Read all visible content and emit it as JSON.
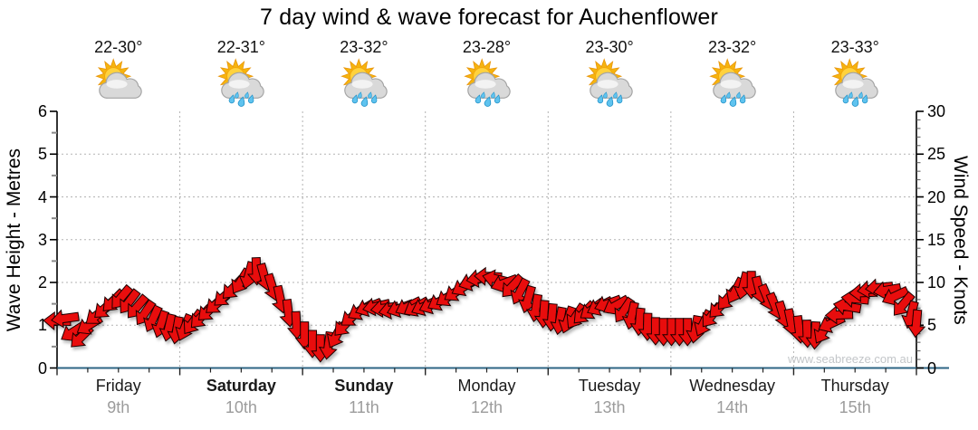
{
  "title": "7 day wind & wave forecast for Auchenflower",
  "watermark": "www.seabreeze.com.au",
  "days": [
    {
      "name": "Friday",
      "date": "9th",
      "temp_range": "22-30°",
      "icon": "sun-cloud",
      "bold": false
    },
    {
      "name": "Saturday",
      "date": "10th",
      "temp_range": "22-31°",
      "icon": "sun-cloud-rain",
      "bold": true
    },
    {
      "name": "Sunday",
      "date": "11th",
      "temp_range": "23-32°",
      "icon": "sun-cloud-rain",
      "bold": true
    },
    {
      "name": "Monday",
      "date": "12th",
      "temp_range": "23-28°",
      "icon": "sun-cloud-rain",
      "bold": false
    },
    {
      "name": "Tuesday",
      "date": "13th",
      "temp_range": "23-30°",
      "icon": "sun-cloud-rain",
      "bold": false
    },
    {
      "name": "Wednesday",
      "date": "14th",
      "temp_range": "23-32°",
      "icon": "sun-cloud-rain",
      "bold": false
    },
    {
      "name": "Thursday",
      "date": "15th",
      "temp_range": "23-33°",
      "icon": "sun-cloud-rain",
      "bold": false
    }
  ],
  "left_axis": {
    "label": "Wave Height - Metres",
    "min": 0,
    "max": 6,
    "ticks": [
      0,
      1,
      2,
      3,
      4,
      5,
      6
    ]
  },
  "right_axis": {
    "label": "Wind Speed - Knots",
    "min": 0,
    "max": 30,
    "ticks": [
      0,
      5,
      10,
      15,
      20,
      25,
      30
    ]
  },
  "chart_data": {
    "type": "wind-arrows",
    "title": "7 day wind & wave forecast for Auchenflower",
    "x_range_days": [
      0,
      7
    ],
    "x_categories": [
      "Friday 9th",
      "Saturday 10th",
      "Sunday 11th",
      "Monday 12th",
      "Tuesday 13th",
      "Wednesday 14th",
      "Thursday 15th"
    ],
    "y_left": {
      "label": "Wave Height - Metres",
      "lim": [
        0,
        6
      ]
    },
    "y_right": {
      "label": "Wind Speed - Knots",
      "lim": [
        0,
        30
      ]
    },
    "grid": {
      "horizontal_dotted_at_metres": [
        1,
        2,
        3,
        4,
        5
      ],
      "vertical_dotted_at_day_boundaries": true
    },
    "wind_points_format": [
      "t_days_from_friday_00",
      "speed_knots",
      "arrow_dir_deg_screen_0E_90S"
    ],
    "wind_points": [
      [
        0.0,
        5.5,
        182
      ],
      [
        0.065,
        5.8,
        172
      ],
      [
        0.13,
        4.2,
        148
      ],
      [
        0.195,
        3.6,
        135
      ],
      [
        0.26,
        5.0,
        148
      ],
      [
        0.325,
        6.2,
        142
      ],
      [
        0.39,
        7.0,
        138
      ],
      [
        0.455,
        7.8,
        135
      ],
      [
        0.52,
        8.2,
        130
      ],
      [
        0.585,
        7.7,
        127
      ],
      [
        0.65,
        7.1,
        130
      ],
      [
        0.715,
        6.4,
        124
      ],
      [
        0.78,
        5.7,
        115
      ],
      [
        0.845,
        5.1,
        108
      ],
      [
        0.91,
        4.7,
        103
      ],
      [
        0.975,
        4.4,
        100
      ],
      [
        1.04,
        4.7,
        112
      ],
      [
        1.105,
        5.3,
        126
      ],
      [
        1.17,
        5.9,
        133
      ],
      [
        1.235,
        6.7,
        137
      ],
      [
        1.3,
        7.5,
        140
      ],
      [
        1.365,
        8.4,
        138
      ],
      [
        1.43,
        9.3,
        134
      ],
      [
        1.495,
        10.1,
        122
      ],
      [
        1.56,
        10.8,
        105
      ],
      [
        1.625,
        11.3,
        88
      ],
      [
        1.69,
        10.6,
        75
      ],
      [
        1.755,
        9.4,
        73
      ],
      [
        1.82,
        8.0,
        78
      ],
      [
        1.885,
        6.4,
        83
      ],
      [
        1.95,
        5.0,
        87
      ],
      [
        2.015,
        3.8,
        90
      ],
      [
        2.08,
        2.8,
        90
      ],
      [
        2.145,
        2.3,
        90
      ],
      [
        2.21,
        2.6,
        98
      ],
      [
        2.275,
        3.8,
        118
      ],
      [
        2.34,
        5.0,
        133
      ],
      [
        2.405,
        6.0,
        142
      ],
      [
        2.47,
        6.7,
        150
      ],
      [
        2.535,
        7.1,
        158
      ],
      [
        2.6,
        7.2,
        167
      ],
      [
        2.665,
        7.0,
        172
      ],
      [
        2.73,
        6.8,
        168
      ],
      [
        2.795,
        7.0,
        160
      ],
      [
        2.86,
        7.2,
        154
      ],
      [
        2.925,
        7.1,
        150
      ],
      [
        2.99,
        7.2,
        155
      ],
      [
        3.055,
        7.4,
        157
      ],
      [
        3.12,
        7.8,
        151
      ],
      [
        3.185,
        8.3,
        147
      ],
      [
        3.25,
        8.9,
        146
      ],
      [
        3.315,
        9.5,
        151
      ],
      [
        3.38,
        10.1,
        160
      ],
      [
        3.445,
        10.5,
        170
      ],
      [
        3.51,
        10.7,
        182
      ],
      [
        3.575,
        10.4,
        193
      ],
      [
        3.64,
        9.9,
        160
      ],
      [
        3.705,
        9.5,
        133
      ],
      [
        3.77,
        8.9,
        117
      ],
      [
        3.835,
        8.0,
        106
      ],
      [
        3.9,
        7.0,
        99
      ],
      [
        3.965,
        6.3,
        94
      ],
      [
        4.03,
        5.9,
        95
      ],
      [
        4.095,
        5.5,
        100
      ],
      [
        4.16,
        5.6,
        109
      ],
      [
        4.225,
        6.0,
        123
      ],
      [
        4.29,
        6.4,
        134
      ],
      [
        4.355,
        6.8,
        144
      ],
      [
        4.42,
        7.2,
        153
      ],
      [
        4.485,
        7.5,
        160
      ],
      [
        4.55,
        7.3,
        151
      ],
      [
        4.615,
        6.7,
        124
      ],
      [
        4.68,
        6.1,
        103
      ],
      [
        4.745,
        5.4,
        95
      ],
      [
        4.81,
        4.8,
        91
      ],
      [
        4.875,
        4.3,
        90
      ],
      [
        4.94,
        4.2,
        90
      ],
      [
        5.005,
        4.2,
        90
      ],
      [
        5.07,
        4.2,
        90
      ],
      [
        5.135,
        4.2,
        90
      ],
      [
        5.2,
        4.5,
        100
      ],
      [
        5.265,
        5.2,
        116
      ],
      [
        5.33,
        6.1,
        128
      ],
      [
        5.395,
        7.1,
        134
      ],
      [
        5.46,
        8.1,
        130
      ],
      [
        5.525,
        9.0,
        118
      ],
      [
        5.59,
        9.6,
        104
      ],
      [
        5.655,
        9.7,
        90
      ],
      [
        5.72,
        9.1,
        76
      ],
      [
        5.785,
        8.2,
        68
      ],
      [
        5.85,
        7.2,
        68
      ],
      [
        5.915,
        6.2,
        73
      ],
      [
        5.98,
        5.3,
        78
      ],
      [
        6.045,
        4.5,
        83
      ],
      [
        6.11,
        4.0,
        88
      ],
      [
        6.175,
        3.8,
        93
      ],
      [
        6.24,
        4.3,
        120
      ],
      [
        6.305,
        5.2,
        155
      ],
      [
        6.37,
        6.2,
        178
      ],
      [
        6.435,
        7.2,
        190
      ],
      [
        6.5,
        8.1,
        186
      ],
      [
        6.565,
        8.8,
        178
      ],
      [
        6.63,
        9.2,
        172
      ],
      [
        6.695,
        9.4,
        174
      ],
      [
        6.76,
        9.1,
        170
      ],
      [
        6.825,
        8.4,
        155
      ],
      [
        6.89,
        7.4,
        130
      ],
      [
        6.955,
        6.2,
        105
      ],
      [
        7.0,
        5.2,
        95
      ]
    ]
  },
  "colors": {
    "arrow": "#e80b0b",
    "arrow_outline": "#1c0000",
    "x_axis_line": "#2e6684",
    "y_axis_line": "#000000",
    "grid": "#b3b3b3",
    "tick": "#222222",
    "day_text": "#1a1a1a",
    "date_text": "#9c9c9c",
    "watermark_text": "#c3c6c9"
  }
}
